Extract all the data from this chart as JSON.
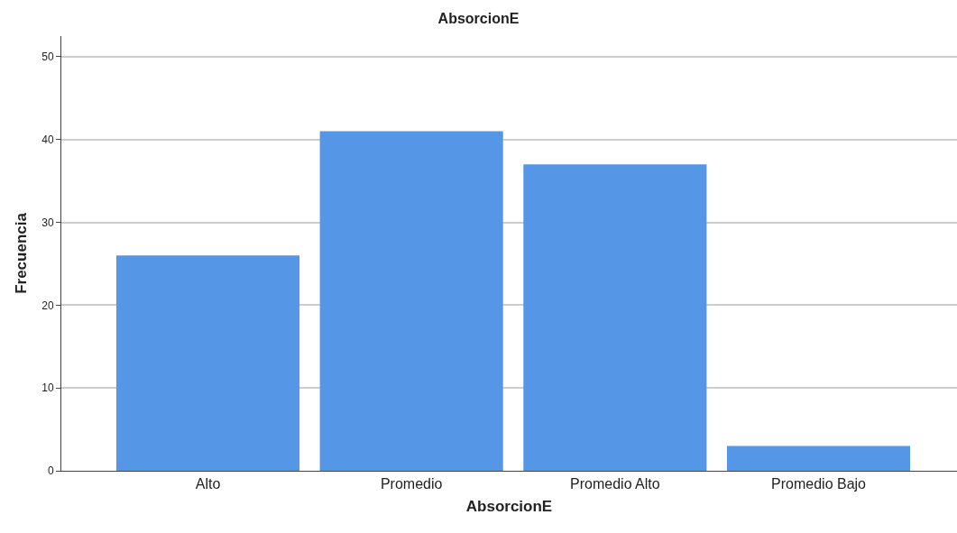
{
  "chart_data": {
    "type": "bar",
    "title": "AbsorcionE",
    "xlabel": "AbsorcionE",
    "ylabel": "Frecuencia",
    "categories": [
      "Alto",
      "Promedio",
      "Promedio Alto",
      "Promedio Bajo"
    ],
    "values": [
      26,
      41,
      37,
      3
    ],
    "color": "#5596e6",
    "ylim": [
      0,
      52.5
    ],
    "yticks": [
      0,
      10,
      20,
      30,
      40,
      50
    ],
    "grid": "y"
  }
}
